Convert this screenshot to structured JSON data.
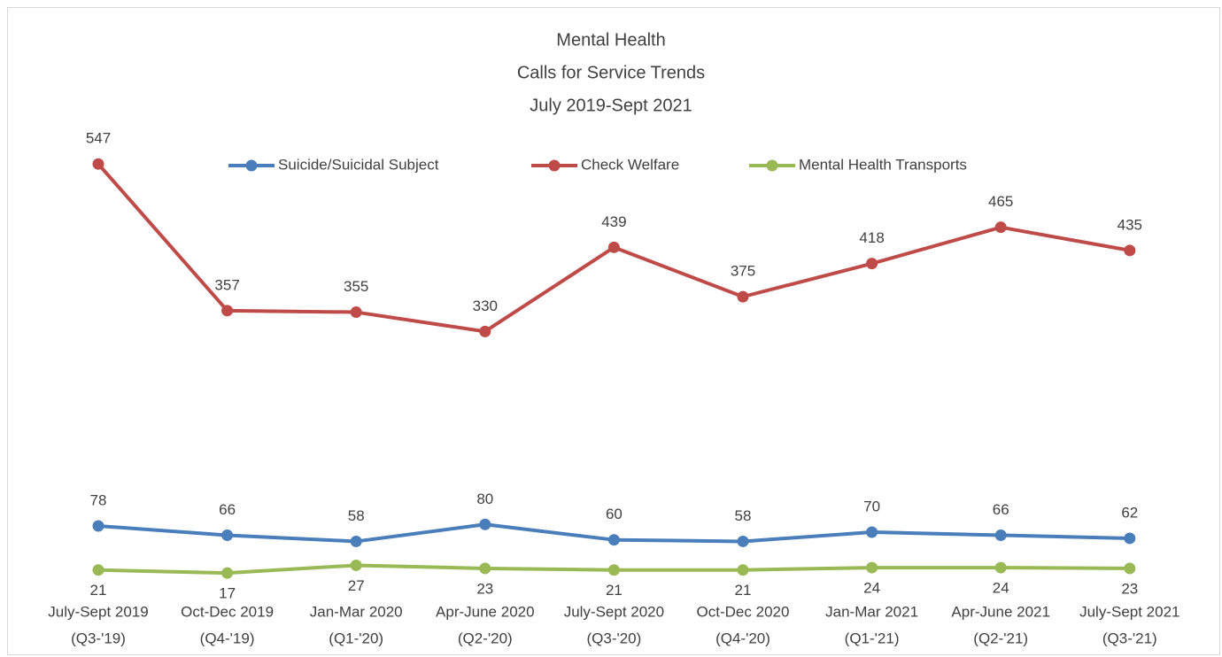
{
  "chart_data": {
    "type": "line",
    "title": [
      "Mental Health",
      "Calls for Service Trends",
      "July 2019-Sept 2021"
    ],
    "categories": [
      [
        "July-Sept 2019",
        "(Q3-'19)"
      ],
      [
        "Oct-Dec 2019",
        "(Q4-'19)"
      ],
      [
        "Jan-Mar 2020",
        "(Q1-'20)"
      ],
      [
        "Apr-June 2020",
        "(Q2-'20)"
      ],
      [
        "July-Sept 2020",
        "(Q3-'20)"
      ],
      [
        "Oct-Dec 2020",
        "(Q4-'20)"
      ],
      [
        "Jan-Mar 2021",
        "(Q1-'21)"
      ],
      [
        "Apr-June 2021",
        "(Q2-'21)"
      ],
      [
        "July-Sept 2021",
        "(Q3-'21)"
      ]
    ],
    "series": [
      {
        "name": "Suicide/Suicidal Subject",
        "color": "#4a7ebb",
        "label_position": "above",
        "values": [
          78,
          66,
          58,
          80,
          60,
          58,
          70,
          66,
          62
        ]
      },
      {
        "name": "Check Welfare",
        "color": "#be4b48",
        "label_position": "above",
        "values": [
          547,
          357,
          355,
          330,
          439,
          375,
          418,
          465,
          435
        ]
      },
      {
        "name": "Mental Health Transports",
        "color": "#98b954",
        "label_position": "below",
        "values": [
          21,
          17,
          27,
          23,
          21,
          21,
          24,
          24,
          23
        ]
      }
    ],
    "ylim": [
      0,
      600
    ],
    "legend": "top",
    "grid": false
  }
}
